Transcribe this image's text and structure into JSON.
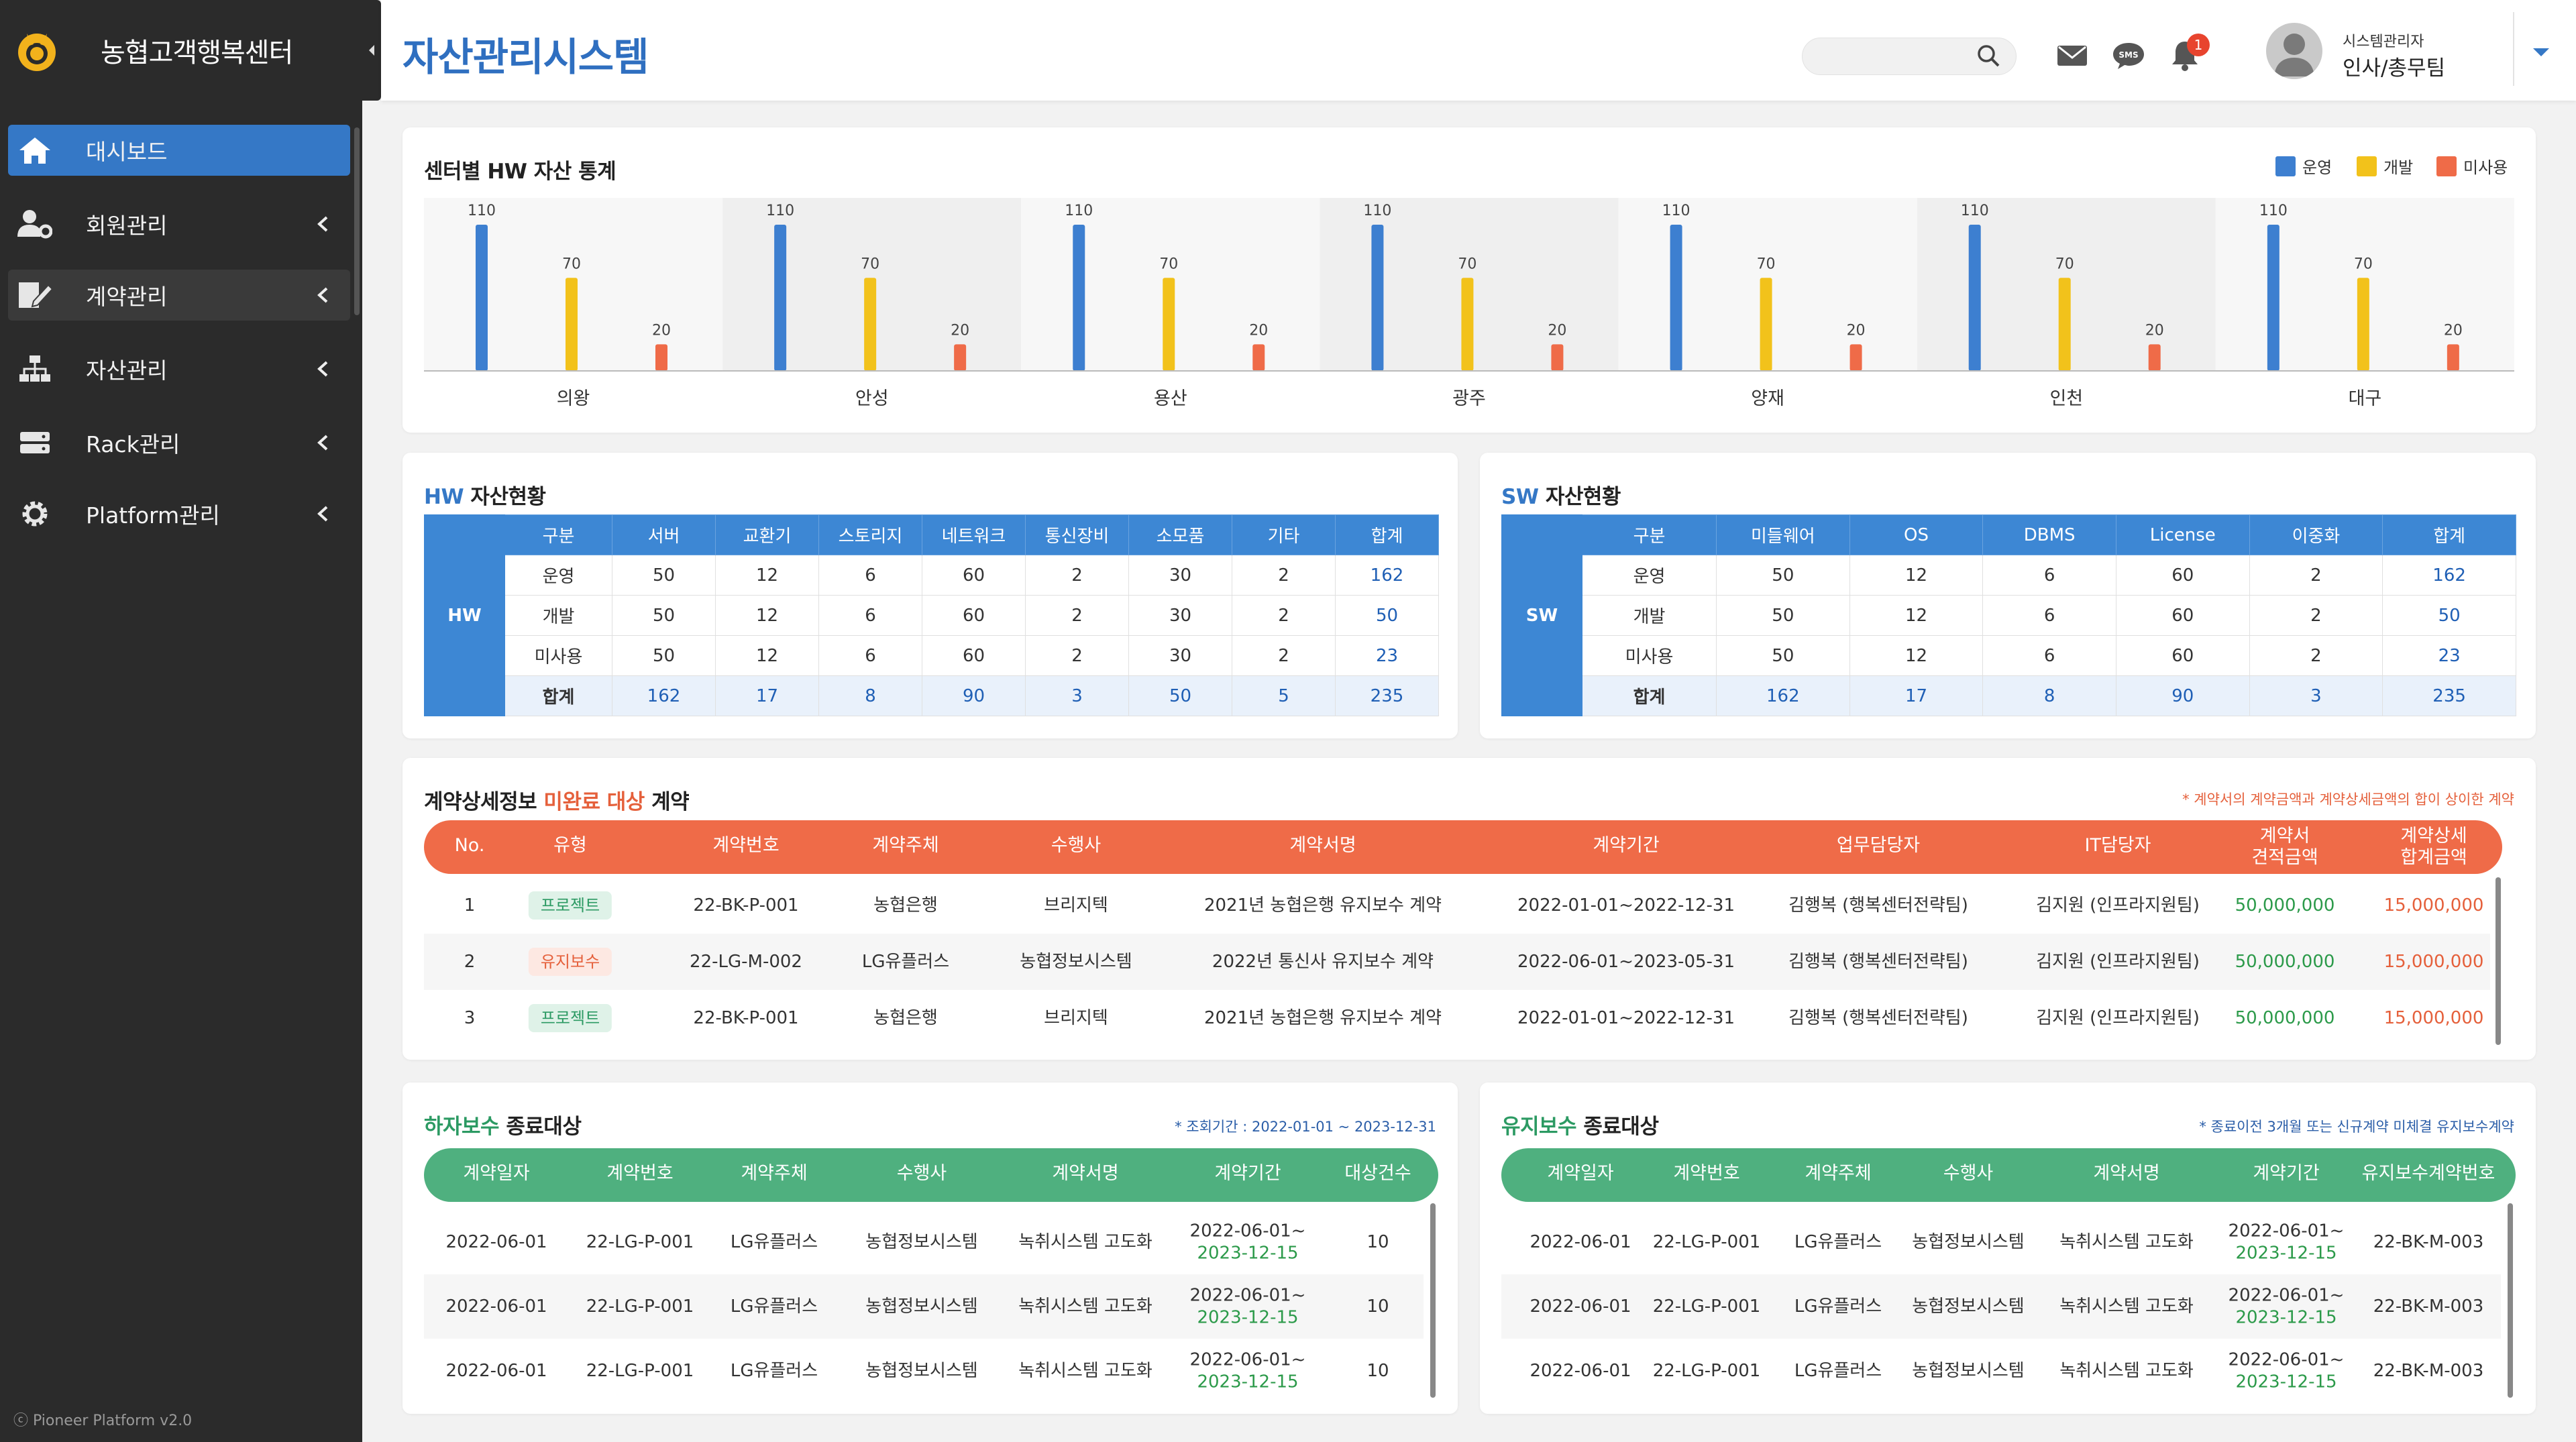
{
  "sidebar": {
    "brand": "농협고객행복센터",
    "items": [
      {
        "label": "대시보드"
      },
      {
        "label": "회원관리"
      },
      {
        "label": "계약관리"
      },
      {
        "label": "자산관리"
      },
      {
        "label": "Rack관리"
      },
      {
        "label": "Platform관리"
      }
    ],
    "footer": "ⓒ Pioneer Platform v2.0"
  },
  "header": {
    "title": "자산관리시스템",
    "search": {
      "value": "",
      "placeholder": ""
    },
    "notification_count": "1",
    "sms_label": "SMS",
    "user": {
      "role": "시스템관리자",
      "dept": "인사/총무팀"
    }
  },
  "hw_chart": {
    "title": "센터별 HW 자산 통계",
    "legend": [
      {
        "name": "운영",
        "color": "#3d7fd0"
      },
      {
        "name": "개발",
        "color": "#f2c21b"
      },
      {
        "name": "미사용",
        "color": "#ef6b48"
      }
    ]
  },
  "chart_data": {
    "type": "bar",
    "title": "센터별 HW 자산 통계",
    "categories": [
      "의왕",
      "안성",
      "용산",
      "광주",
      "양재",
      "인천",
      "대구"
    ],
    "series": [
      {
        "name": "운영",
        "values": [
          110,
          110,
          110,
          110,
          110,
          110,
          110
        ]
      },
      {
        "name": "개발",
        "values": [
          70,
          70,
          70,
          70,
          70,
          70,
          70
        ]
      },
      {
        "name": "미사용",
        "values": [
          20,
          20,
          20,
          20,
          20,
          20,
          20
        ]
      }
    ],
    "ylim": [
      0,
      110
    ],
    "grid": false,
    "legend_position": "top-right"
  },
  "hw_table": {
    "title_prefix": "HW",
    "title_suffix": " 자산현황",
    "side": "HW",
    "headers": [
      "구분",
      "서버",
      "교환기",
      "스토리지",
      "네트워크",
      "통신장비",
      "소모품",
      "기타",
      "합계"
    ],
    "rows": [
      [
        "운영",
        "50",
        "12",
        "6",
        "60",
        "2",
        "30",
        "2",
        "162"
      ],
      [
        "개발",
        "50",
        "12",
        "6",
        "60",
        "2",
        "30",
        "2",
        "50"
      ],
      [
        "미사용",
        "50",
        "12",
        "6",
        "60",
        "2",
        "30",
        "2",
        "23"
      ],
      [
        "합계",
        "162",
        "17",
        "8",
        "90",
        "3",
        "50",
        "5",
        "235"
      ]
    ]
  },
  "sw_table": {
    "title_prefix": "SW",
    "title_suffix": " 자산현황",
    "side": "SW",
    "headers": [
      "구분",
      "미들웨어",
      "OS",
      "DBMS",
      "License",
      "이중화",
      "합계"
    ],
    "rows": [
      [
        "운영",
        "50",
        "12",
        "6",
        "60",
        "2",
        "162"
      ],
      [
        "개발",
        "50",
        "12",
        "6",
        "60",
        "2",
        "50"
      ],
      [
        "미사용",
        "50",
        "12",
        "6",
        "60",
        "2",
        "23"
      ],
      [
        "합계",
        "162",
        "17",
        "8",
        "90",
        "3",
        "235"
      ]
    ]
  },
  "contracts": {
    "title_a": "계약상세정보 ",
    "title_b": "미완료 대상",
    "title_c": " 계약",
    "note": "* 계약서의 계약금액과 계약상세금액의 합이 상이한 계약",
    "headers": [
      "No.",
      "유형",
      "계약번호",
      "계약주체",
      "수행사",
      "계약서명",
      "계약기간",
      "업무담당자",
      "IT담당자",
      "계약서\n견적금액",
      "계약상세\n합계금액"
    ],
    "rows": [
      [
        "1",
        "프로젝트",
        "22-BK-P-001",
        "농협은행",
        "브리지텍",
        "2021년 농협은행 유지보수 계약",
        "2022-01-01~2022-12-31",
        "김행복 (행복센터전략팀)",
        "김지원 (인프라지원팀)",
        "50,000,000",
        "15,000,000"
      ],
      [
        "2",
        "유지보수",
        "22-LG-M-002",
        "LG유플러스",
        "농협정보시스템",
        "2022년 통신사 유지보수 계약",
        "2022-06-01~2023-05-31",
        "김행복 (행복센터전략팀)",
        "김지원 (인프라지원팀)",
        "50,000,000",
        "15,000,000"
      ],
      [
        "3",
        "프로젝트",
        "22-BK-P-001",
        "농협은행",
        "브리지텍",
        "2021년 농협은행 유지보수 계약",
        "2022-01-01~2022-12-31",
        "김행복 (행복센터전략팀)",
        "김지원 (인프라지원팀)",
        "50,000,000",
        "15,000,000"
      ]
    ]
  },
  "warranty": {
    "title_a": "하자보수",
    "title_b": " 종료대상",
    "note": "* 조회기간 : 2022-01-01 ~ 2023-12-31",
    "headers": [
      "계약일자",
      "계약번호",
      "계약주체",
      "수행사",
      "계약서명",
      "계약기간",
      "대상건수"
    ],
    "rows": [
      [
        "2022-06-01",
        "22-LG-P-001",
        "LG유플러스",
        "농협정보시스템",
        "녹취시스템 고도화",
        "2022-06-01~",
        "2023-12-15",
        "10"
      ],
      [
        "2022-06-01",
        "22-LG-P-001",
        "LG유플러스",
        "농협정보시스템",
        "녹취시스템 고도화",
        "2022-06-01~",
        "2023-12-15",
        "10"
      ],
      [
        "2022-06-01",
        "22-LG-P-001",
        "LG유플러스",
        "농협정보시스템",
        "녹취시스템 고도화",
        "2022-06-01~",
        "2023-12-15",
        "10"
      ]
    ]
  },
  "maintenance": {
    "title_a": "유지보수",
    "title_b": " 종료대상",
    "note": "* 종료이전 3개월 또는 신규계약 미체결 유지보수계약",
    "headers": [
      "계약일자",
      "계약번호",
      "계약주체",
      "수행사",
      "계약서명",
      "계약기간",
      "유지보수계약번호"
    ],
    "rows": [
      [
        "2022-06-01",
        "22-LG-P-001",
        "LG유플러스",
        "농협정보시스템",
        "녹취시스템 고도화",
        "2022-06-01~",
        "2023-12-15",
        "22-BK-M-003"
      ],
      [
        "2022-06-01",
        "22-LG-P-001",
        "LG유플러스",
        "농협정보시스템",
        "녹취시스템 고도화",
        "2022-06-01~",
        "2023-12-15",
        "22-BK-M-003"
      ],
      [
        "2022-06-01",
        "22-LG-P-001",
        "LG유플러스",
        "농협정보시스템",
        "녹취시스템 고도화",
        "2022-06-01~",
        "2023-12-15",
        "22-BK-M-003"
      ]
    ]
  },
  "colors": {
    "primary": "#3578c6",
    "orange": "#ef6b48",
    "green": "#4fb07f",
    "sidebar": "#2b2b2b"
  }
}
